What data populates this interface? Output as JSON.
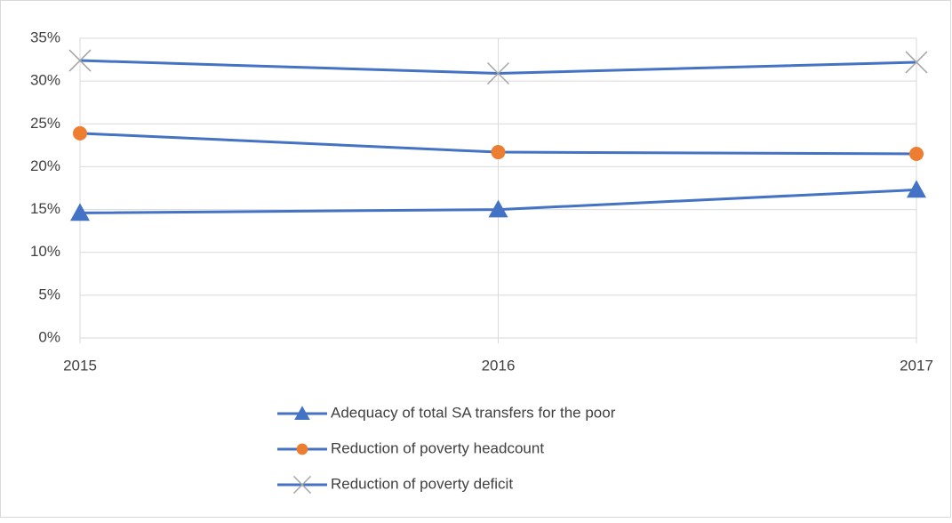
{
  "chart_data": {
    "type": "line",
    "categories": [
      "2015",
      "2016",
      "2017"
    ],
    "series": [
      {
        "name": "Adequacy of total SA transfers for the poor",
        "color": "#4472c4",
        "marker": "triangle",
        "marker_color": "#4472c4",
        "values": [
          14.6,
          15.0,
          17.3
        ]
      },
      {
        "name": "Reduction of poverty headcount",
        "color": "#4472c4",
        "marker": "circle",
        "marker_color": "#ed7d31",
        "values": [
          23.9,
          21.7,
          21.5
        ]
      },
      {
        "name": "Reduction of poverty deficit",
        "color": "#4472c4",
        "marker": "x",
        "marker_color": "#a5a5a5",
        "values": [
          32.4,
          30.9,
          32.2
        ]
      }
    ],
    "ylim": [
      0,
      35
    ],
    "yticks": [
      {
        "value": 0,
        "label": "0%"
      },
      {
        "value": 5,
        "label": "5%"
      },
      {
        "value": 10,
        "label": "10%"
      },
      {
        "value": 15,
        "label": "15%"
      },
      {
        "value": 20,
        "label": "20%"
      },
      {
        "value": 25,
        "label": "25%"
      },
      {
        "value": 30,
        "label": "30%"
      },
      {
        "value": 35,
        "label": "35%"
      }
    ],
    "grid": true,
    "legend": "bottom"
  }
}
